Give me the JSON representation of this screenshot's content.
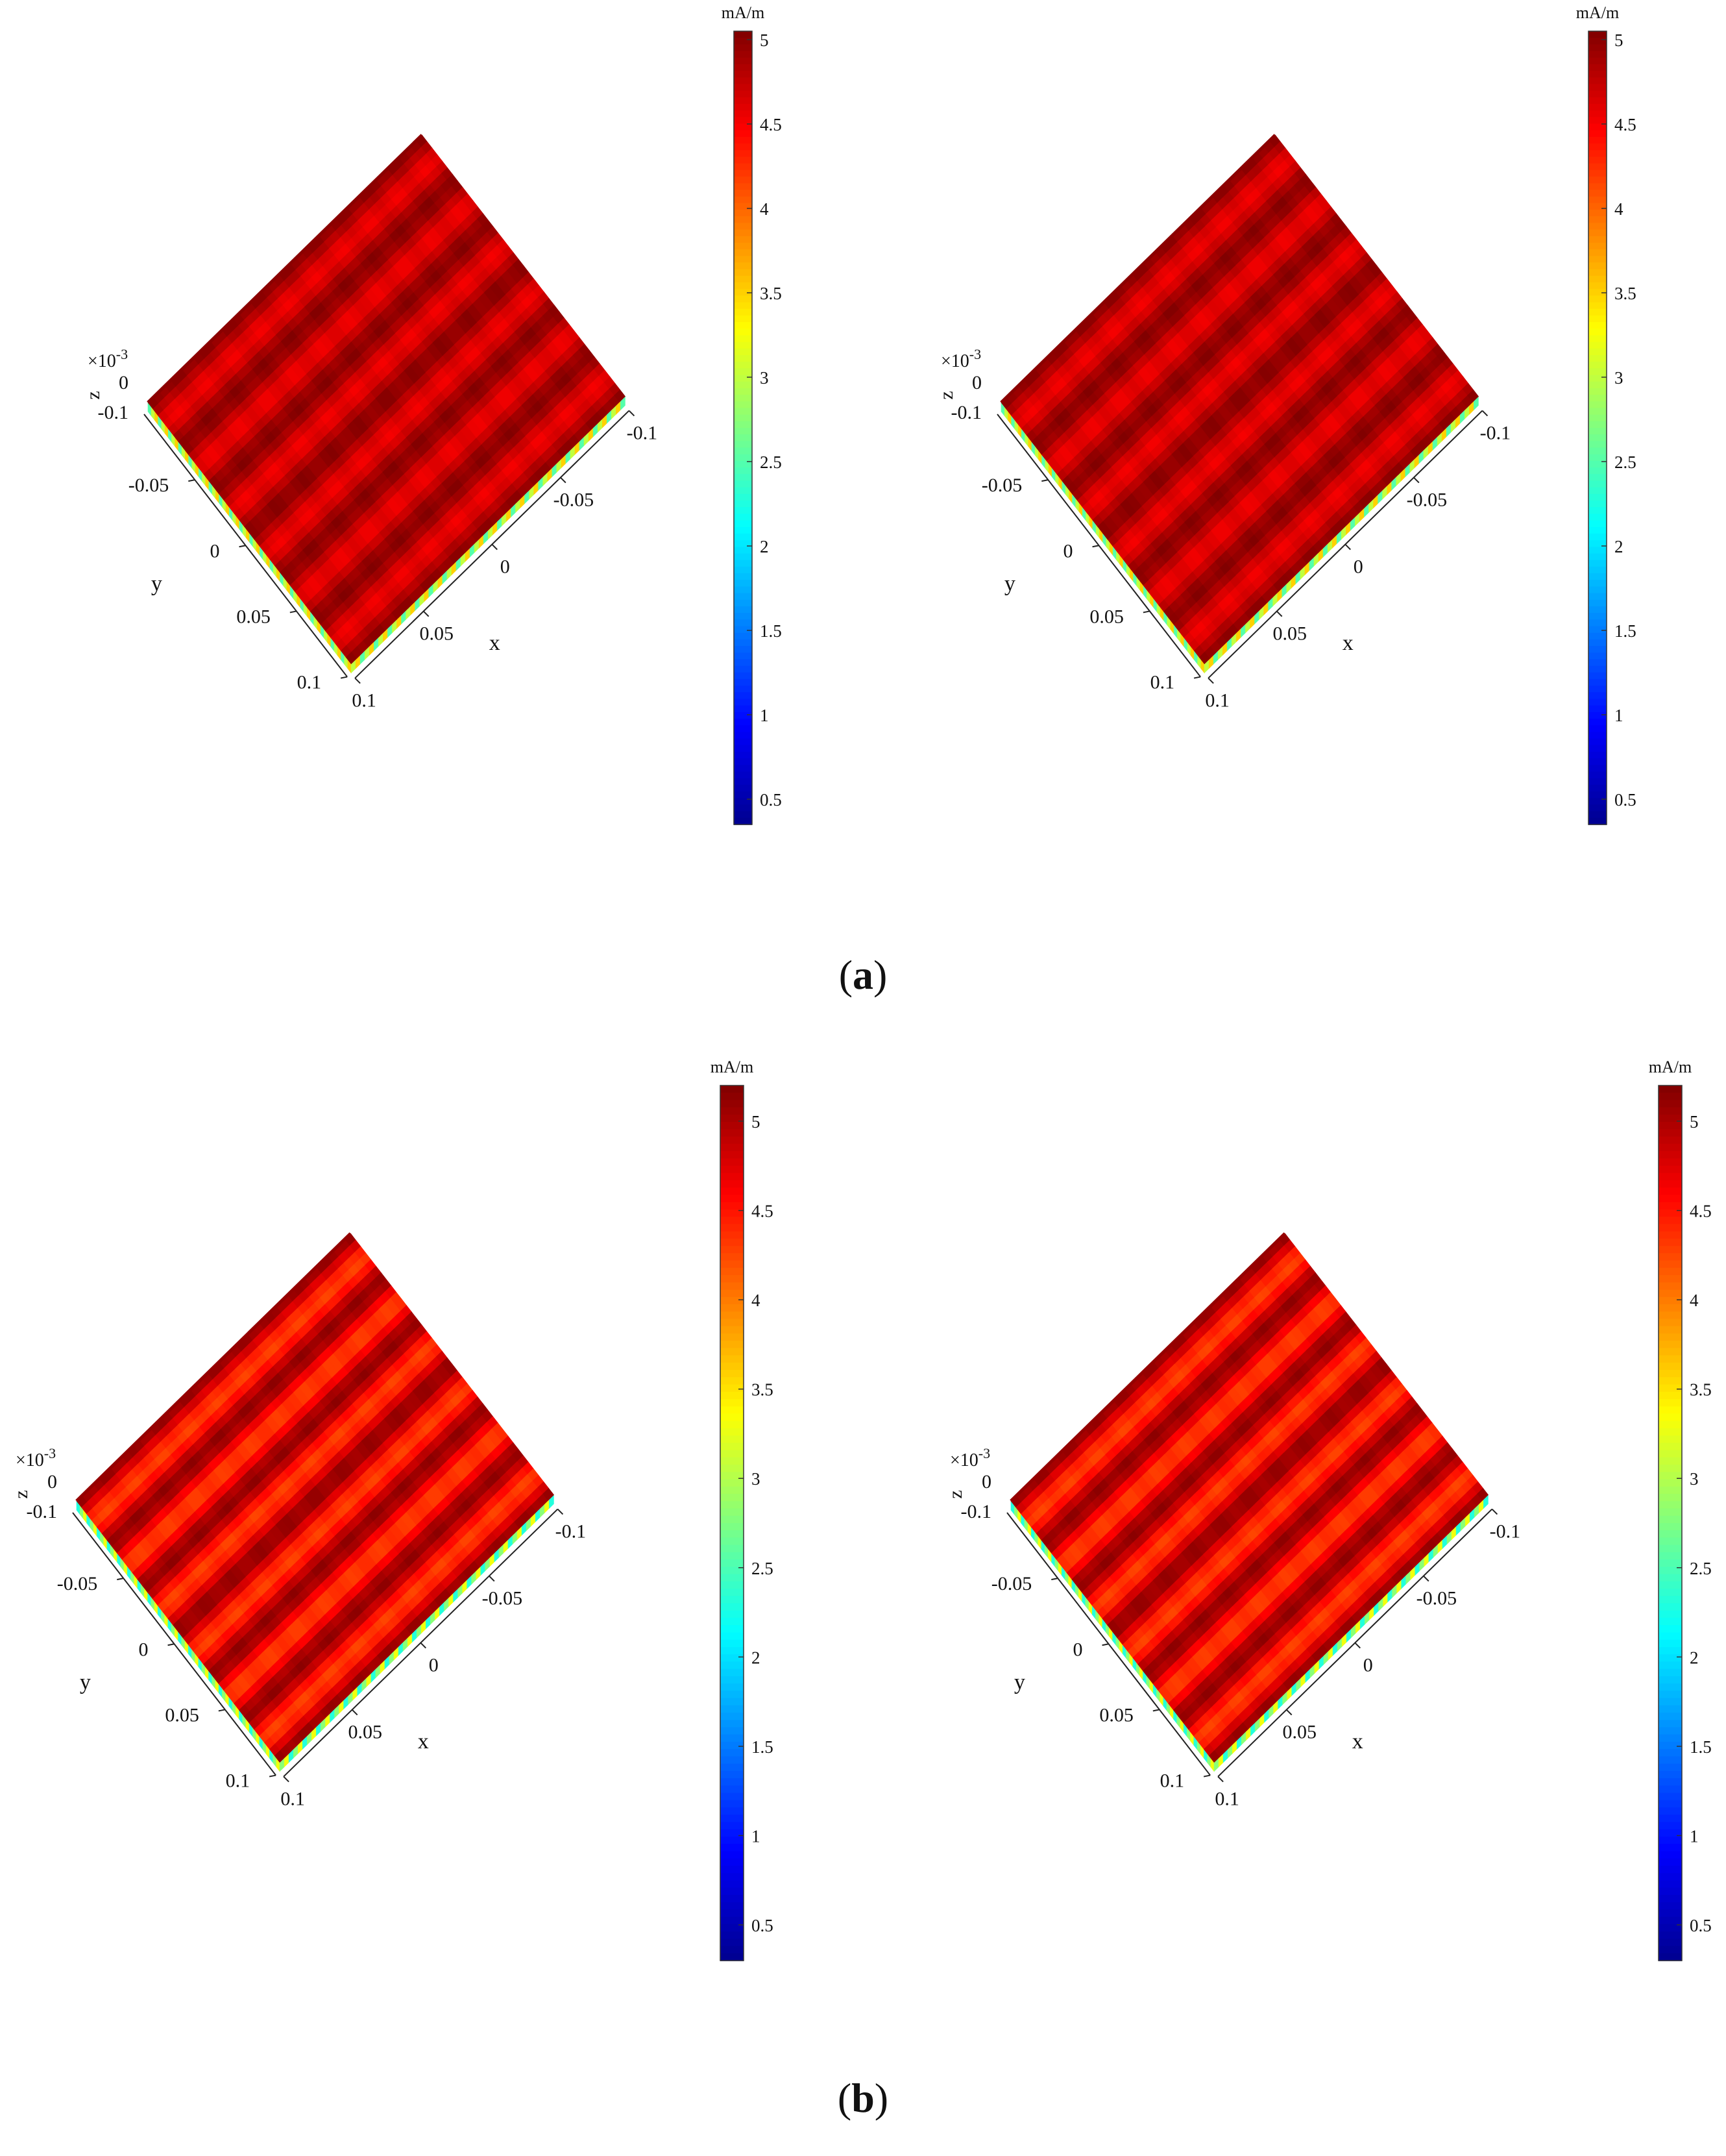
{
  "figure": {
    "caption_a": "a",
    "caption_b": "b"
  },
  "colormap": [
    "#00008f",
    "#0000ff",
    "#0080ff",
    "#00ffff",
    "#80ff80",
    "#ffff00",
    "#ff8000",
    "#ff0000",
    "#800000"
  ],
  "chart_data": [
    {
      "type": "heatmap",
      "panel": "a",
      "position": "left",
      "x_ticks": [
        "-0.1",
        "-0.05",
        "0",
        "0.05",
        "0.1"
      ],
      "y_ticks": [
        "-0.05",
        "0",
        "0.05",
        "0.1"
      ],
      "z_ticks": [
        "0",
        "-0.1"
      ],
      "z_exponent_label": "×10",
      "z_exponent": "-3",
      "xlabel": "x",
      "ylabel": "y",
      "zlabel": "z",
      "colorbar": {
        "unit": "mA/m",
        "ticks": [
          "5",
          "4.5",
          "4",
          "3.5",
          "3",
          "2.5",
          "2",
          "1.5",
          "1",
          "0.5"
        ],
        "tick_values": [
          5,
          4.5,
          4,
          3.5,
          3,
          2.5,
          2,
          1.5,
          1,
          0.5
        ],
        "range": [
          0.35,
          5.05
        ]
      },
      "surface": {
        "stripes": 6,
        "max": 5.0,
        "min_in_stripe": 4.55,
        "edge_near": 2.5
      }
    },
    {
      "type": "heatmap",
      "panel": "a",
      "position": "right",
      "x_ticks": [
        "-0.1",
        "-0.05",
        "0",
        "0.05",
        "0.1"
      ],
      "y_ticks": [
        "-0.05",
        "0",
        "0.05",
        "0.1"
      ],
      "z_ticks": [
        "0",
        "-0.1"
      ],
      "z_exponent_label": "×10",
      "z_exponent": "-3",
      "xlabel": "x",
      "ylabel": "y",
      "zlabel": "z",
      "colorbar": {
        "unit": "mA/m",
        "ticks": [
          "5",
          "4.5",
          "4",
          "3.5",
          "3",
          "2.5",
          "2",
          "1.5",
          "1",
          "0.5"
        ],
        "tick_values": [
          5,
          4.5,
          4,
          3.5,
          3,
          2.5,
          2,
          1.5,
          1,
          0.5
        ],
        "range": [
          0.35,
          5.05
        ]
      },
      "surface": {
        "stripes": 6,
        "max": 5.0,
        "min_in_stripe": 4.55,
        "edge_near": 2.5
      }
    },
    {
      "type": "heatmap",
      "panel": "b",
      "position": "left",
      "x_ticks": [
        "-0.1",
        "-0.05",
        "0",
        "0.05",
        "0.1"
      ],
      "y_ticks": [
        "-0.05",
        "0",
        "0.05",
        "0.1"
      ],
      "z_ticks": [
        "0",
        "-0.1"
      ],
      "z_exponent_label": "×10",
      "z_exponent": "-3",
      "xlabel": "x",
      "ylabel": "y",
      "zlabel": "z",
      "colorbar": {
        "unit": "mA/m",
        "ticks": [
          "5",
          "4.5",
          "4",
          "3.5",
          "3",
          "2.5",
          "2",
          "1.5",
          "1",
          "0.5"
        ],
        "tick_values": [
          5,
          4.5,
          4,
          3.5,
          3,
          2.5,
          2,
          1.5,
          1,
          0.5
        ],
        "range": [
          0.3,
          5.2
        ]
      },
      "surface": {
        "stripes": 6,
        "max": 5.1,
        "min_in_stripe": 4.3,
        "edge_near": 2.3
      }
    },
    {
      "type": "heatmap",
      "panel": "b",
      "position": "right",
      "x_ticks": [
        "-0.1",
        "-0.05",
        "0",
        "0.05",
        "0.1"
      ],
      "y_ticks": [
        "-0.05",
        "0",
        "0.05",
        "0.1"
      ],
      "z_ticks": [
        "0",
        "-0.1"
      ],
      "z_exponent_label": "×10",
      "z_exponent": "-3",
      "xlabel": "x",
      "ylabel": "y",
      "zlabel": "z",
      "colorbar": {
        "unit": "mA/m",
        "ticks": [
          "5",
          "4.5",
          "4",
          "3.5",
          "3",
          "2.5",
          "2",
          "1.5",
          "1",
          "0.5"
        ],
        "tick_values": [
          5,
          4.5,
          4,
          3.5,
          3,
          2.5,
          2,
          1.5,
          1,
          0.5
        ],
        "range": [
          0.3,
          5.2
        ]
      },
      "surface": {
        "stripes": 6,
        "max": 5.1,
        "min_in_stripe": 4.3,
        "edge_near": 2.3
      }
    }
  ]
}
